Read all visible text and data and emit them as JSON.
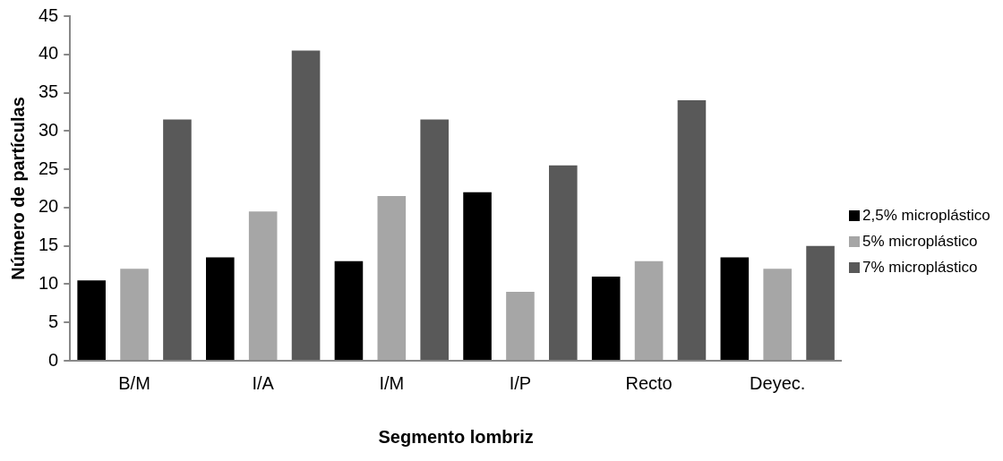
{
  "chart_data": {
    "type": "bar",
    "xlabel": "Segmento lombriz",
    "ylabel": "Número de partículas",
    "categories": [
      "B/M",
      "I/A",
      "I/M",
      "I/P",
      "Recto",
      "Deyec."
    ],
    "series": [
      {
        "name": "2,5% microplástico",
        "color": "#000000",
        "values": [
          10.5,
          13.5,
          13,
          22,
          11,
          13.5
        ]
      },
      {
        "name": "5% microplástico",
        "color": "#a6a6a6",
        "values": [
          12,
          19.5,
          21.5,
          9,
          13,
          12
        ]
      },
      {
        "name": "7% microplástico",
        "color": "#595959",
        "values": [
          31.5,
          40.5,
          31.5,
          25.5,
          34,
          15
        ]
      }
    ],
    "ylim": [
      0,
      45
    ],
    "yticks": [
      0,
      5,
      10,
      15,
      20,
      25,
      30,
      35,
      40,
      45
    ],
    "grid": false,
    "legend": "right"
  }
}
